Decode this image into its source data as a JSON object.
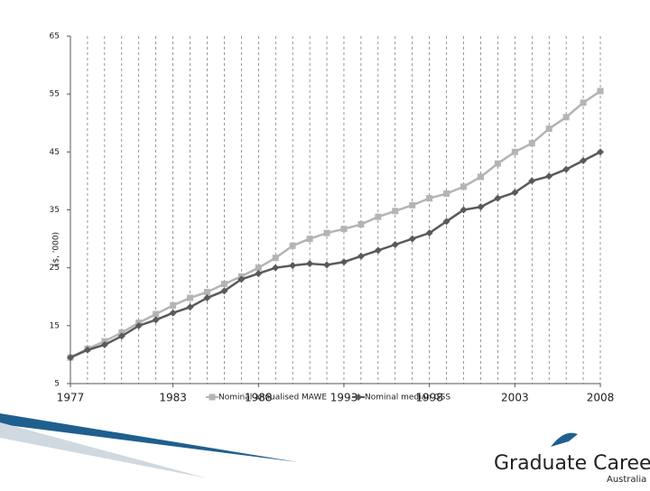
{
  "chart_data": {
    "type": "line",
    "ylabel": "($, '000)",
    "x": [
      1977,
      1978,
      1979,
      1980,
      1981,
      1982,
      1983,
      1984,
      1985,
      1986,
      1987,
      1988,
      1989,
      1990,
      1991,
      1992,
      1993,
      1994,
      1995,
      1996,
      1997,
      1998,
      1999,
      2000,
      2001,
      2002,
      2003,
      2004,
      2005,
      2006,
      2007,
      2008
    ],
    "xlim": [
      1977,
      2008
    ],
    "xticks": [
      1977,
      1983,
      1988,
      1993,
      1998,
      2003,
      2008
    ],
    "ylim": [
      5,
      65
    ],
    "yticks": [
      5,
      15,
      25,
      35,
      45,
      55,
      65
    ],
    "grid": true,
    "series": [
      {
        "name": "Nominal annualised MAWE",
        "color": "#b4b4b4",
        "marker": "square",
        "values": [
          9.5,
          11,
          12.3,
          13.8,
          15.5,
          17,
          18.5,
          19.8,
          20.8,
          22.2,
          23.5,
          25,
          26.7,
          28.8,
          30,
          31,
          31.7,
          32.5,
          33.8,
          34.8,
          35.8,
          37,
          37.8,
          39,
          40.7,
          43,
          45,
          46.5,
          49,
          51,
          53.5,
          55.5
        ]
      },
      {
        "name": "Nominal median GSS",
        "color": "#5a5a5a",
        "marker": "diamond",
        "values": [
          9.5,
          10.8,
          11.7,
          13.2,
          15,
          16,
          17.2,
          18.2,
          19.8,
          21,
          23,
          24,
          25,
          25.4,
          25.7,
          25.5,
          26,
          27,
          28,
          29,
          30,
          31,
          33,
          35,
          35.5,
          37,
          38,
          40,
          40.8,
          42,
          43.5,
          45
        ]
      }
    ]
  },
  "logo": {
    "name": "Graduate Careers",
    "subtitle": "Australia"
  }
}
